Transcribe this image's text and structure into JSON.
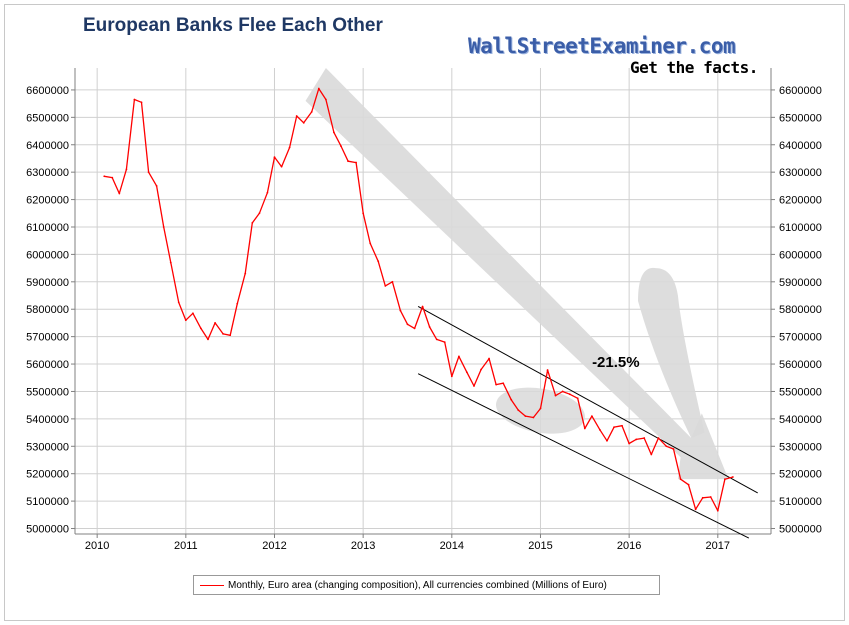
{
  "header": {
    "title": "European Banks Flee Each Other",
    "brand": "WallStreetExaminer.com",
    "tagline": "Get the facts."
  },
  "colors": {
    "series_line": "#ff0000",
    "title_text": "#1f3864",
    "brand_text": "#3b5ea8",
    "arrow_fill": "#d9d9d9",
    "grid": "#d0d0d0",
    "channel_line": "#000000"
  },
  "annotation": {
    "label": "-21.5%"
  },
  "chart_data": {
    "type": "line",
    "title": "European Banks Flee Each Other",
    "xlabel": "",
    "ylabel": "",
    "xlim": [
      2009.75,
      2017.6
    ],
    "ylim": [
      4980000,
      6680000
    ],
    "grid": true,
    "legend_position": "bottom",
    "x_ticks": [
      2010,
      2011,
      2012,
      2013,
      2014,
      2015,
      2016,
      2017
    ],
    "x_tick_labels": [
      "2010",
      "2011",
      "2012",
      "2013",
      "2014",
      "2015",
      "2016",
      "2017"
    ],
    "y_ticks": [
      5000000,
      5100000,
      5200000,
      5300000,
      5400000,
      5500000,
      5600000,
      5700000,
      5800000,
      5900000,
      6000000,
      6100000,
      6200000,
      6300000,
      6400000,
      6500000,
      6600000
    ],
    "y_tick_labels": [
      "5000000",
      "5100000",
      "5200000",
      "5300000",
      "5400000",
      "5500000",
      "5600000",
      "5700000",
      "5800000",
      "5900000",
      "6000000",
      "6100000",
      "6200000",
      "6300000",
      "6400000",
      "6500000",
      "6600000"
    ],
    "series": [
      {
        "name": "Monthly, Euro area (changing composition), All currencies combined (Millions of Euro)",
        "x": [
          2010.08,
          2010.17,
          2010.25,
          2010.33,
          2010.42,
          2010.5,
          2010.58,
          2010.67,
          2010.75,
          2010.83,
          2010.92,
          2011.0,
          2011.08,
          2011.17,
          2011.25,
          2011.33,
          2011.42,
          2011.5,
          2011.58,
          2011.67,
          2011.75,
          2011.83,
          2011.92,
          2012.0,
          2012.08,
          2012.17,
          2012.25,
          2012.33,
          2012.42,
          2012.5,
          2012.58,
          2012.67,
          2012.75,
          2012.83,
          2012.92,
          2013.0,
          2013.08,
          2013.17,
          2013.25,
          2013.33,
          2013.42,
          2013.5,
          2013.58,
          2013.67,
          2013.75,
          2013.83,
          2013.92,
          2014.0,
          2014.08,
          2014.17,
          2014.25,
          2014.33,
          2014.42,
          2014.5,
          2014.58,
          2014.67,
          2014.75,
          2014.83,
          2014.92,
          2015.0,
          2015.08,
          2015.17,
          2015.25,
          2015.33,
          2015.42,
          2015.5,
          2015.58,
          2015.67,
          2015.75,
          2015.83,
          2015.92,
          2016.0,
          2016.08,
          2016.17,
          2016.25,
          2016.33,
          2016.42,
          2016.5,
          2016.58,
          2016.67,
          2016.75,
          2016.83,
          2016.92,
          2017.0,
          2017.08,
          2017.17
        ],
        "values": [
          6285000,
          6280000,
          6222000,
          6310000,
          6565000,
          6555000,
          6300000,
          6250000,
          6100000,
          5970000,
          5825000,
          5760000,
          5785000,
          5730000,
          5690000,
          5750000,
          5710000,
          5705000,
          5820000,
          5930000,
          6115000,
          6150000,
          6225000,
          6355000,
          6320000,
          6390000,
          6505000,
          6480000,
          6520000,
          6605000,
          6565000,
          6445000,
          6395000,
          6340000,
          6335000,
          6150000,
          6040000,
          5975000,
          5885000,
          5900000,
          5795000,
          5745000,
          5730000,
          5810000,
          5735000,
          5690000,
          5680000,
          5555000,
          5628000,
          5570000,
          5520000,
          5580000,
          5620000,
          5525000,
          5530000,
          5470000,
          5432000,
          5410000,
          5405000,
          5438000,
          5578000,
          5485000,
          5500000,
          5490000,
          5475000,
          5365000,
          5410000,
          5360000,
          5320000,
          5370000,
          5375000,
          5310000,
          5325000,
          5330000,
          5270000,
          5330000,
          5300000,
          5290000,
          5180000,
          5160000,
          5070000,
          5112000,
          5115000,
          5065000,
          5180000,
          5188000
        ]
      }
    ],
    "annotations": [
      {
        "text": "-21.5%",
        "x": 2015.85,
        "y": 5590000
      }
    ]
  }
}
